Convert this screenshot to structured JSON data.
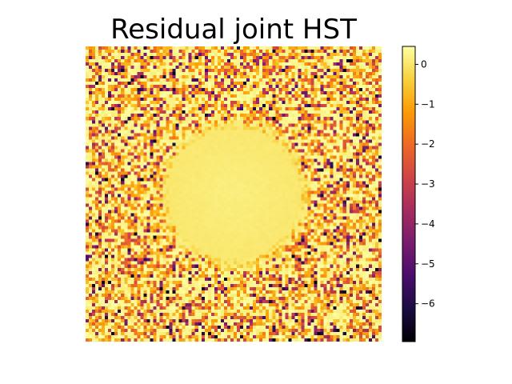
{
  "chart_data": {
    "type": "heatmap",
    "title": "Residual joint HST",
    "xlabel": "",
    "ylabel": "",
    "axes_visible": false,
    "grid_size": [
      92,
      92
    ],
    "colormap": "inferno",
    "colorbar": {
      "vmin": -6.95,
      "vmax": 0.45,
      "ticks": [
        0,
        -1,
        -2,
        -3,
        -4,
        -5,
        -6
      ],
      "tick_labels": [
        "0",
        "−1",
        "−2",
        "−3",
        "−4",
        "−5",
        "−6"
      ],
      "placement": "right"
    },
    "structure": {
      "center": [
        0.5,
        0.5
      ],
      "smooth_disk_radius_fraction": 0.22,
      "disk_value": 0.15,
      "background_value_range": [
        -6.95,
        0.45
      ]
    },
    "colors": {
      "inferno_stops": [
        "#000004",
        "#1b0c41",
        "#4a0c6b",
        "#781c6d",
        "#a52c60",
        "#cf4446",
        "#ed6925",
        "#fb9b06",
        "#f7d13d",
        "#fcffa4"
      ]
    }
  }
}
